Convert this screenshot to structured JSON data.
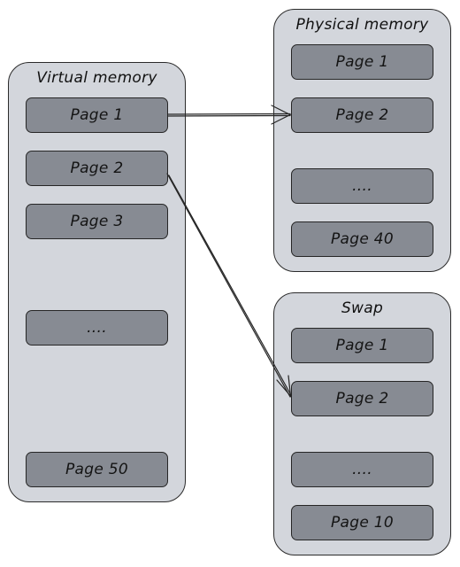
{
  "virtual": {
    "title": "Virtual memory",
    "pages": [
      "Page 1",
      "Page 2",
      "Page 3",
      "....",
      "Page 50"
    ]
  },
  "physical": {
    "title": "Physical memory",
    "pages": [
      "Page 1",
      "Page 2",
      "....",
      "Page 40"
    ]
  },
  "swap": {
    "title": "Swap",
    "pages": [
      "Page 1",
      "Page 2",
      "....",
      "Page 10"
    ]
  },
  "colors": {
    "panel_fill": "#d3d6dc",
    "page_fill": "#878b93",
    "stroke": "#262626"
  }
}
